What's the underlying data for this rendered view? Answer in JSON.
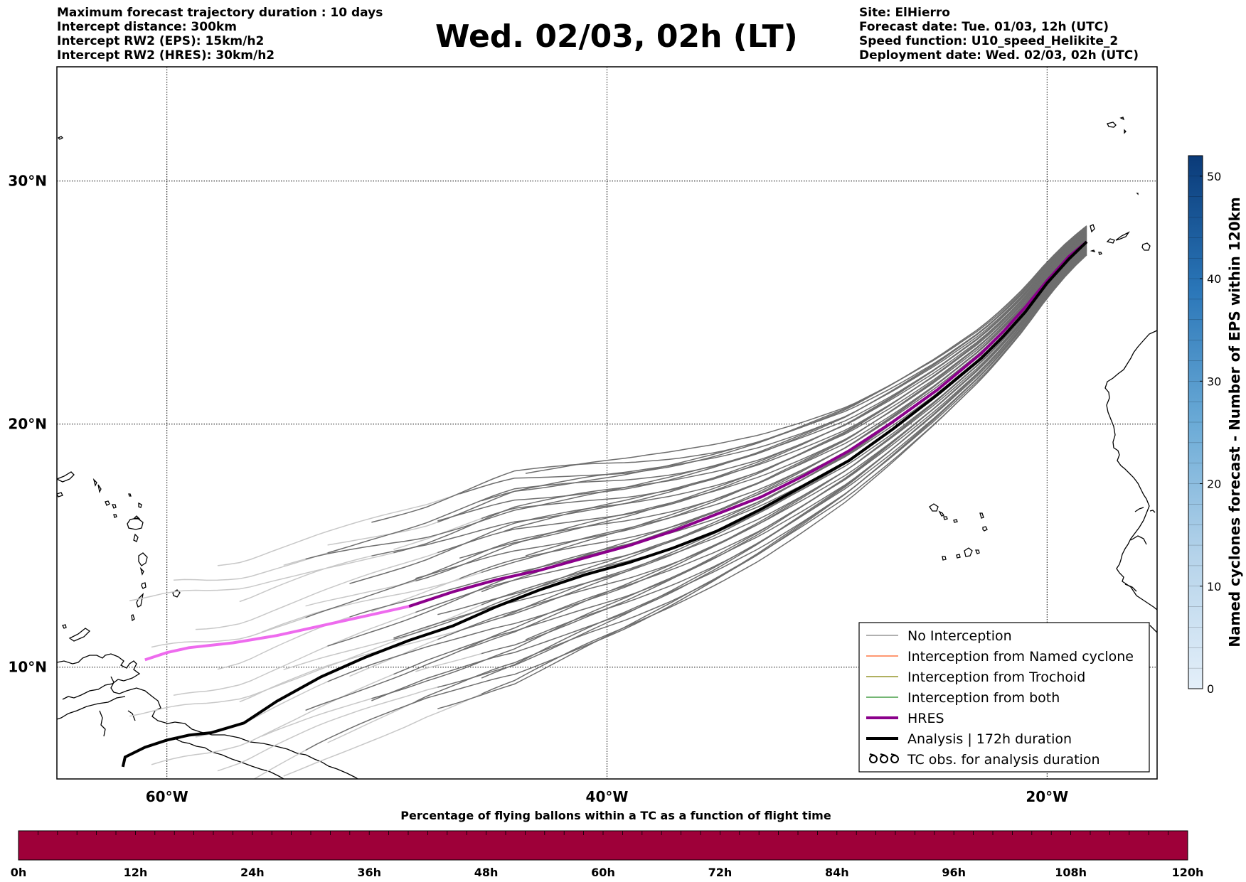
{
  "header": {
    "left_lines": [
      "Maximum forecast trajectory duration : 10 days",
      "Intercept distance: 300km",
      "Intercept RW2 (EPS):  15km/h2",
      "Intercept RW2 (HRES): 30km/h2"
    ],
    "title": "Wed. 02/03, 02h (LT)",
    "right_lines": [
      "Site: ElHierro",
      "Forecast date: Tue. 01/03, 12h (UTC)",
      "Speed function: U10_speed_Helikite_2",
      "Deployment date: Wed. 02/03, 02h (UTC)"
    ]
  },
  "map": {
    "lat_labels": [
      "30°N",
      "20°N",
      "10°N"
    ],
    "lon_labels": [
      "60°W",
      "40°W",
      "20°W"
    ],
    "lat_lines": [
      30,
      20,
      10
    ],
    "lon_lines": [
      -60,
      -40,
      -20
    ],
    "extent": {
      "lon_min": -65,
      "lon_max": -15,
      "lat_min": 5.4,
      "lat_max": 34.7
    },
    "hres_track": [
      [
        -18.2,
        27.5
      ],
      [
        -19.0,
        26.9
      ],
      [
        -20.0,
        25.9
      ],
      [
        -21.0,
        24.8
      ],
      [
        -22.0,
        23.8
      ],
      [
        -23.0,
        22.9
      ],
      [
        -25.0,
        21.4
      ],
      [
        -27.0,
        20.1
      ],
      [
        -29.0,
        18.9
      ],
      [
        -31.0,
        17.9
      ],
      [
        -33.0,
        17.0
      ],
      [
        -35.0,
        16.3
      ],
      [
        -37.0,
        15.6
      ],
      [
        -39.0,
        15.0
      ],
      [
        -41.0,
        14.5
      ],
      [
        -43.0,
        14.0
      ],
      [
        -45.0,
        13.6
      ],
      [
        -47.0,
        13.1
      ],
      [
        -49.0,
        12.5
      ],
      [
        -51.0,
        12.1
      ],
      [
        -53.0,
        11.7
      ],
      [
        -55.0,
        11.3
      ],
      [
        -57.0,
        11.0
      ],
      [
        -59.0,
        10.8
      ],
      [
        -60.0,
        10.6
      ],
      [
        -61.0,
        10.3
      ]
    ],
    "analysis_track": [
      [
        -18.2,
        27.5
      ],
      [
        -19.0,
        26.8
      ],
      [
        -20.0,
        25.8
      ],
      [
        -21.0,
        24.6
      ],
      [
        -22.0,
        23.6
      ],
      [
        -23.0,
        22.7
      ],
      [
        -25.0,
        21.2
      ],
      [
        -27.0,
        19.8
      ],
      [
        -29.0,
        18.5
      ],
      [
        -31.0,
        17.5
      ],
      [
        -33.0,
        16.5
      ],
      [
        -35.0,
        15.6
      ],
      [
        -37.0,
        14.9
      ],
      [
        -39.0,
        14.3
      ],
      [
        -41.0,
        13.8
      ],
      [
        -43.0,
        13.2
      ],
      [
        -45.0,
        12.5
      ],
      [
        -47.0,
        11.7
      ],
      [
        -49.0,
        11.1
      ],
      [
        -51.0,
        10.4
      ],
      [
        -53.0,
        9.6
      ],
      [
        -55.0,
        8.6
      ],
      [
        -56.5,
        7.7
      ],
      [
        -58.0,
        7.3
      ],
      [
        -59.0,
        7.2
      ],
      [
        -60.0,
        7.0
      ],
      [
        -61.0,
        6.7
      ],
      [
        -61.9,
        6.3
      ],
      [
        -62.0,
        5.9
      ]
    ]
  },
  "legend": {
    "items": [
      {
        "label": "No Interception",
        "color": "#808080",
        "kind": "thin"
      },
      {
        "label": "Interception from Named cyclone",
        "color": "#ff5a1f",
        "kind": "thin"
      },
      {
        "label": "Interception from Trochoid",
        "color": "#808000",
        "kind": "thin"
      },
      {
        "label": "Interception from both",
        "color": "#228b22",
        "kind": "thin"
      },
      {
        "label": "HRES",
        "color": "#8b008b",
        "kind": "thick"
      },
      {
        "label": "Analysis | 172h duration",
        "color": "#000000",
        "kind": "thick"
      },
      {
        "label": "TC obs. for analysis duration",
        "color": "#000000",
        "kind": "tc-icon"
      }
    ]
  },
  "colorbar": {
    "label": "Named cyclones forecast - Number of EPS within 120km",
    "ticks": [
      "0",
      "10",
      "20",
      "30",
      "40",
      "50"
    ],
    "tick_values": [
      0,
      10,
      20,
      30,
      40,
      50
    ],
    "max": 52,
    "color_low": "#e4eff9",
    "color_high": "#0a3a78"
  },
  "time_bar": {
    "title": "Percentage of flying ballons within a TC as a function of flight time",
    "color": "#9e0039",
    "labels": [
      "0h",
      "12h",
      "24h",
      "36h",
      "48h",
      "60h",
      "72h",
      "84h",
      "96h",
      "108h",
      "120h"
    ]
  }
}
